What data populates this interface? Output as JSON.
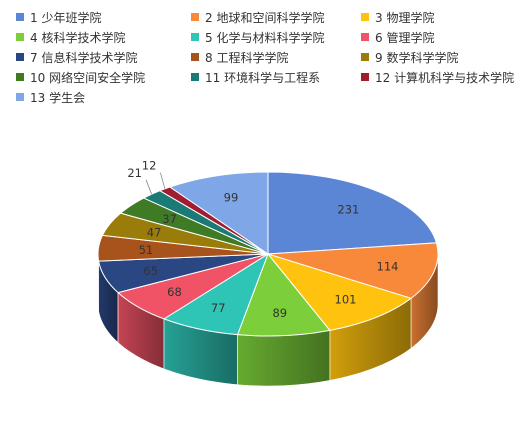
{
  "chart_data": {
    "type": "pie",
    "style": "3d",
    "legend_position": "top",
    "categories": [
      "1 少年班学院",
      "2 地球和空间科学学院",
      "3 物理学院",
      "4 核科学技术学院",
      "5 化学与材料科学学院",
      "6 管理学院",
      "7 信息科学技术学院",
      "8 工程科学学院",
      "9 数学科学学院",
      "10 网络空间安全学院",
      "11 环境科学与工程系",
      "12 计算机科学与技术学院",
      "13 学生会"
    ],
    "values": [
      231,
      114,
      101,
      89,
      77,
      68,
      65,
      51,
      47,
      37,
      21,
      12,
      99
    ],
    "colors": [
      "#5b86d6",
      "#f8893a",
      "#ffc20e",
      "#7ccf3a",
      "#2ec4b6",
      "#f05366",
      "#2a4784",
      "#a8521c",
      "#9a7c0a",
      "#3f7a24",
      "#1a7a76",
      "#a01c30",
      "#7fa7e8"
    ]
  }
}
